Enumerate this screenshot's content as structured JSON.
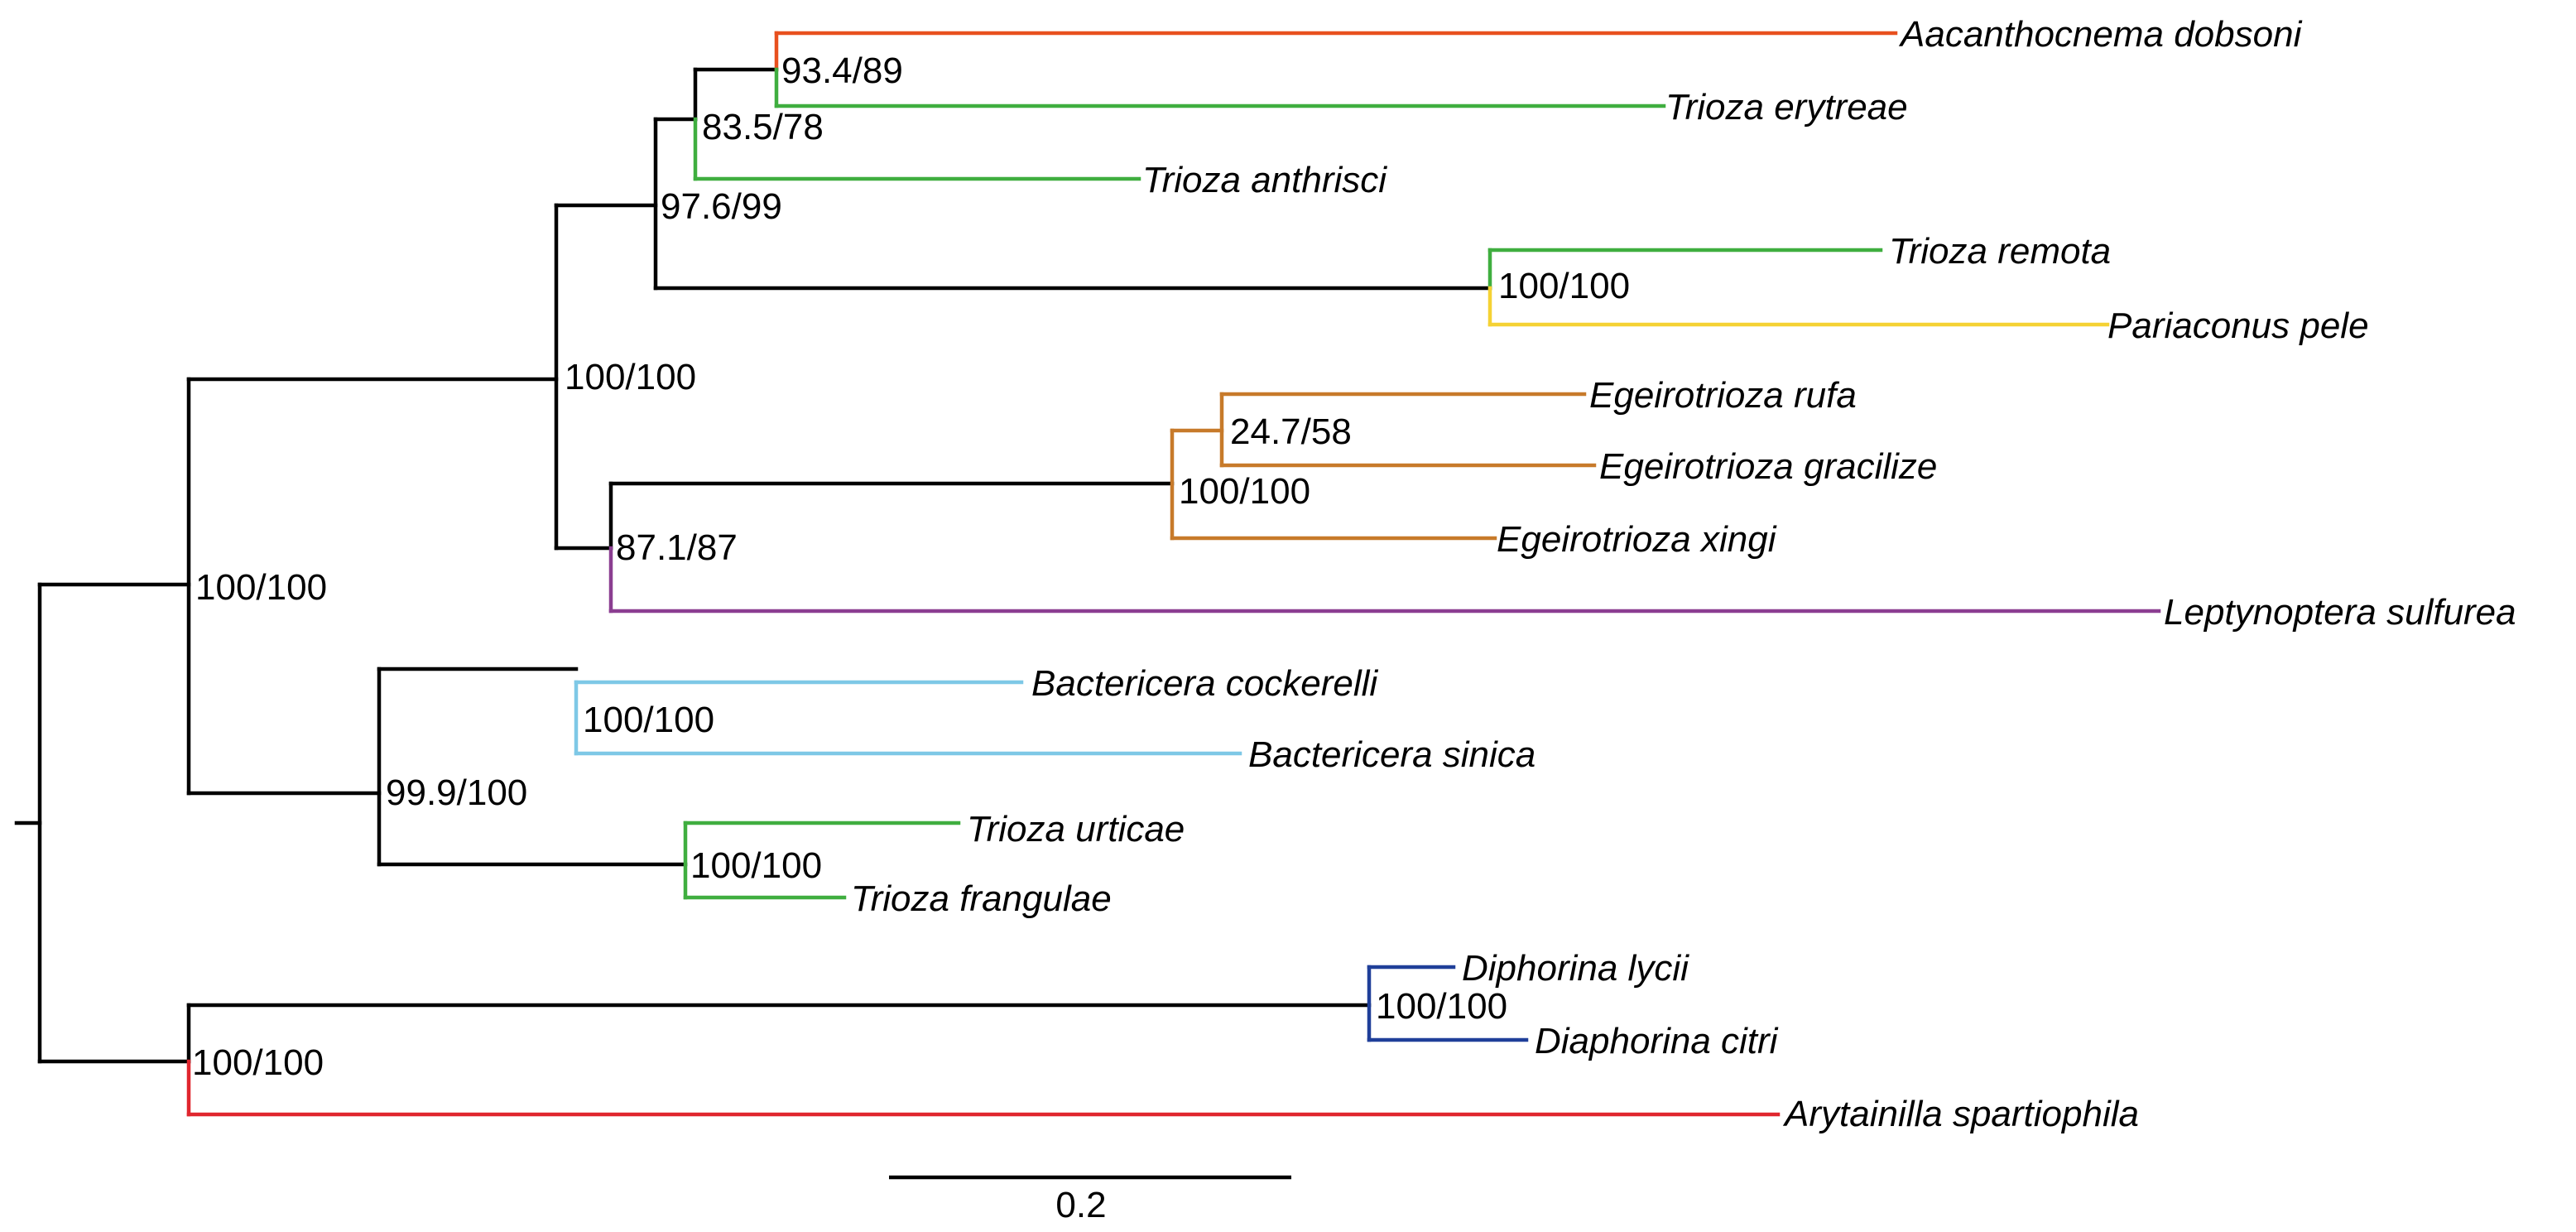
{
  "figure": {
    "type": "phylogenetic-tree",
    "scale_bar_label": "0.2"
  },
  "colors": {
    "backbone": "#000000",
    "red_orange": "#E8501E",
    "green": "#3FAE3F",
    "yellow": "#F5D234",
    "orange_brown": "#C77A2A",
    "purple": "#8B3E91",
    "light_blue": "#7EC8E6",
    "dark_blue": "#1F3F99",
    "red": "#E0262E"
  },
  "taxa": [
    {
      "key": "aacanthocnema",
      "name": "Aacanthocnema dobsoni",
      "color": "#E8501E"
    },
    {
      "key": "trioza-erytreae",
      "name": "Trioza erytreae",
      "color": "#3FAE3F"
    },
    {
      "key": "trioza-anthrisci",
      "name": "Trioza anthrisci",
      "color": "#3FAE3F"
    },
    {
      "key": "trioza-remota",
      "name": "Trioza remota",
      "color": "#3FAE3F"
    },
    {
      "key": "pariaconus-pele",
      "name": "Pariaconus pele",
      "color": "#F5D234"
    },
    {
      "key": "egeirotrioza-rufa",
      "name": "Egeirotrioza rufa",
      "color": "#C77A2A"
    },
    {
      "key": "egeirotrioza-gracilize",
      "name": "Egeirotrioza gracilize",
      "color": "#C77A2A"
    },
    {
      "key": "egeirotrioza-xingi",
      "name": "Egeirotrioza xingi",
      "color": "#C77A2A"
    },
    {
      "key": "leptynoptera-sulfurea",
      "name": "Leptynoptera sulfurea",
      "color": "#8B3E91"
    },
    {
      "key": "bactericera-cockerelli",
      "name": "Bactericera cockerelli",
      "color": "#7EC8E6"
    },
    {
      "key": "bactericera-sinica",
      "name": "Bactericera sinica",
      "color": "#7EC8E6"
    },
    {
      "key": "trioza-urticae",
      "name": "Trioza urticae",
      "color": "#3FAE3F"
    },
    {
      "key": "trioza-frangulae",
      "name": "Trioza frangulae",
      "color": "#3FAE3F"
    },
    {
      "key": "diphorina-lycii",
      "name": "Diphorina lycii",
      "color": "#1F3F99"
    },
    {
      "key": "diaphorina-citri",
      "name": "Diaphorina citri",
      "color": "#1F3F99"
    },
    {
      "key": "arytainilla-spartiophila",
      "name": "Arytainilla spartiophila",
      "color": "#E0262E"
    }
  ],
  "support_values": [
    {
      "key": "aacanthocnema-erytreae",
      "label": "93.4/89"
    },
    {
      "key": "plus-anthrisci",
      "label": "83.5/78"
    },
    {
      "key": "plus-remota-pele",
      "label": "97.6/99"
    },
    {
      "key": "remota-pele",
      "label": "100/100"
    },
    {
      "key": "upper-trioza-clade",
      "label": "100/100"
    },
    {
      "key": "rufa-gracilize",
      "label": "24.7/58"
    },
    {
      "key": "egeirotrioza",
      "label": "100/100"
    },
    {
      "key": "egeirotrioza-leptynoptera",
      "label": "87.1/87"
    },
    {
      "key": "triozidae",
      "label": "100/100"
    },
    {
      "key": "bactericera",
      "label": "100/100"
    },
    {
      "key": "bactericera-urticae",
      "label": "99.9/100"
    },
    {
      "key": "urticae-frangulae",
      "label": "100/100"
    },
    {
      "key": "diaphorina",
      "label": "100/100"
    },
    {
      "key": "outgroup",
      "label": "100/100"
    }
  ]
}
